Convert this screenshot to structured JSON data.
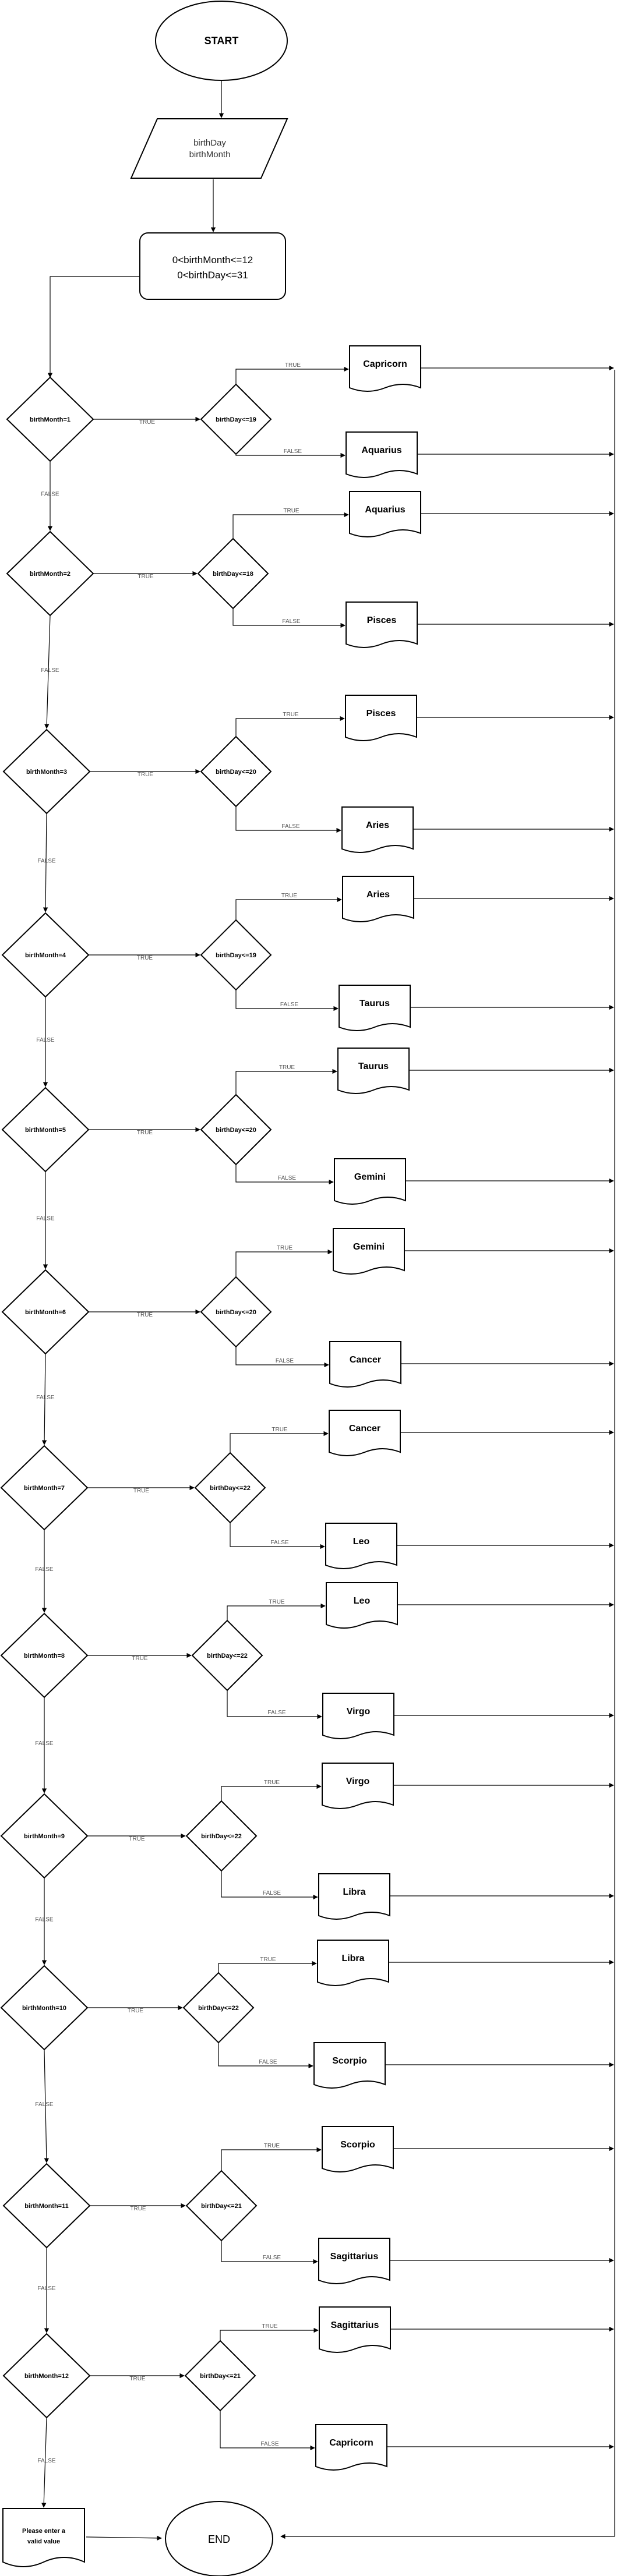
{
  "start_label": "START",
  "input_lines": [
    "birthDay",
    "birthMonth"
  ],
  "validation_lines": [
    "0<birthMonth<=12",
    "0<birthDay<=31"
  ],
  "edge_labels": {
    "true": "TRUE",
    "false": "FALSE"
  },
  "error_label_lines": [
    "Please enter a",
    "valid value"
  ],
  "end_label": "END",
  "months": [
    {
      "month_condition": "birthMonth=1",
      "day_condition": "birthDay<=19",
      "sign_if_true": "Capricorn",
      "sign_if_false": "Aquarius"
    },
    {
      "month_condition": "birthMonth=2",
      "day_condition": "birthDay<=18",
      "sign_if_true": "Aquarius",
      "sign_if_false": "Pisces"
    },
    {
      "month_condition": "birthMonth=3",
      "day_condition": "birthDay<=20",
      "sign_if_true": "Pisces",
      "sign_if_false": "Aries"
    },
    {
      "month_condition": "birthMonth=4",
      "day_condition": "birthDay<=19",
      "sign_if_true": "Aries",
      "sign_if_false": "Taurus"
    },
    {
      "month_condition": "birthMonth=5",
      "day_condition": "birthDay<=20",
      "sign_if_true": "Taurus",
      "sign_if_false": "Gemini"
    },
    {
      "month_condition": "birthMonth=6",
      "day_condition": "birthDay<=20",
      "sign_if_true": "Gemini",
      "sign_if_false": "Cancer"
    },
    {
      "month_condition": "birthMonth=7",
      "day_condition": "birthDay<=22",
      "sign_if_true": "Cancer",
      "sign_if_false": "Leo"
    },
    {
      "month_condition": "birthMonth=8",
      "day_condition": "birthDay<=22",
      "sign_if_true": "Leo",
      "sign_if_false": "Virgo"
    },
    {
      "month_condition": "birthMonth=9",
      "day_condition": "birthDay<=22",
      "sign_if_true": "Virgo",
      "sign_if_false": "Libra"
    },
    {
      "month_condition": "birthMonth=10",
      "day_condition": "birthDay<=22",
      "sign_if_true": "Libra",
      "sign_if_false": "Scorpio"
    },
    {
      "month_condition": "birthMonth=11",
      "day_condition": "birthDay<=21",
      "sign_if_true": "Scorpio",
      "sign_if_false": "Sagittarius"
    },
    {
      "month_condition": "birthMonth=12",
      "day_condition": "birthDay<=21",
      "sign_if_true": "Sagittarius",
      "sign_if_false": "Capricorn"
    }
  ]
}
